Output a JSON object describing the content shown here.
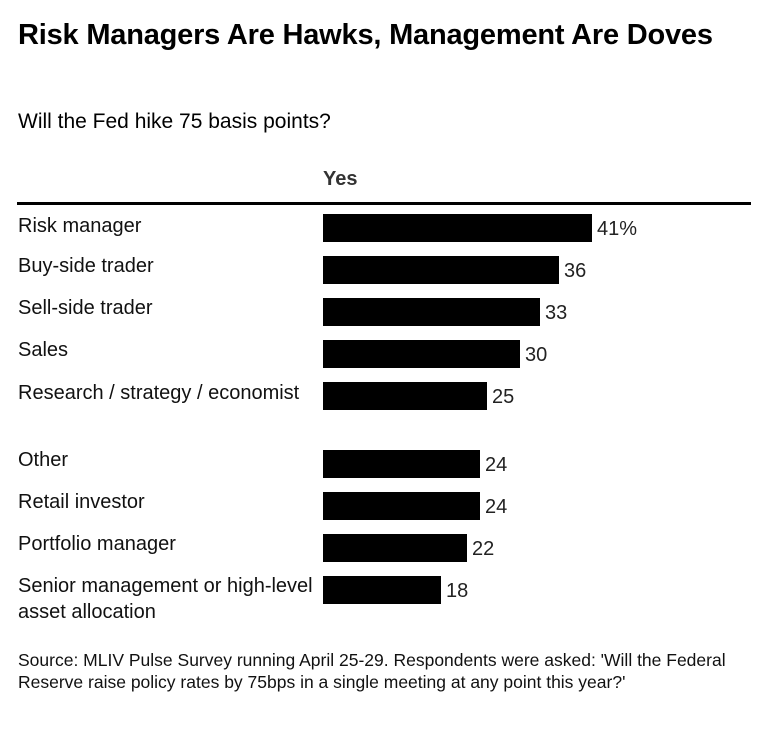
{
  "title": "Risk Managers Are Hawks, Management Are Doves",
  "subtitle": "Will the Fed hike 75 basis points?",
  "column_header": "Yes",
  "source": "Source: MLIV Pulse Survey running April 25-29. Respondents were asked: 'Will the Federal Reserve raise policy rates by 75bps in a single meeting at any point this year?'",
  "chart_data": {
    "type": "bar",
    "orientation": "horizontal",
    "categories": [
      "Risk manager",
      "Buy-side trader",
      "Sell-side trader",
      "Sales",
      "Research / strategy / economist",
      "Other",
      "Retail investor",
      "Portfolio manager",
      "Senior management or high-level asset allocation"
    ],
    "series": [
      {
        "name": "Yes",
        "values": [
          41,
          36,
          33,
          30,
          25,
          24,
          24,
          22,
          18
        ]
      }
    ],
    "value_labels": [
      "41%",
      "36",
      "33",
      "30",
      "25",
      "24",
      "24",
      "22",
      "18"
    ],
    "bar_color": "#000000",
    "xlim": [
      0,
      41
    ],
    "grid": false
  }
}
